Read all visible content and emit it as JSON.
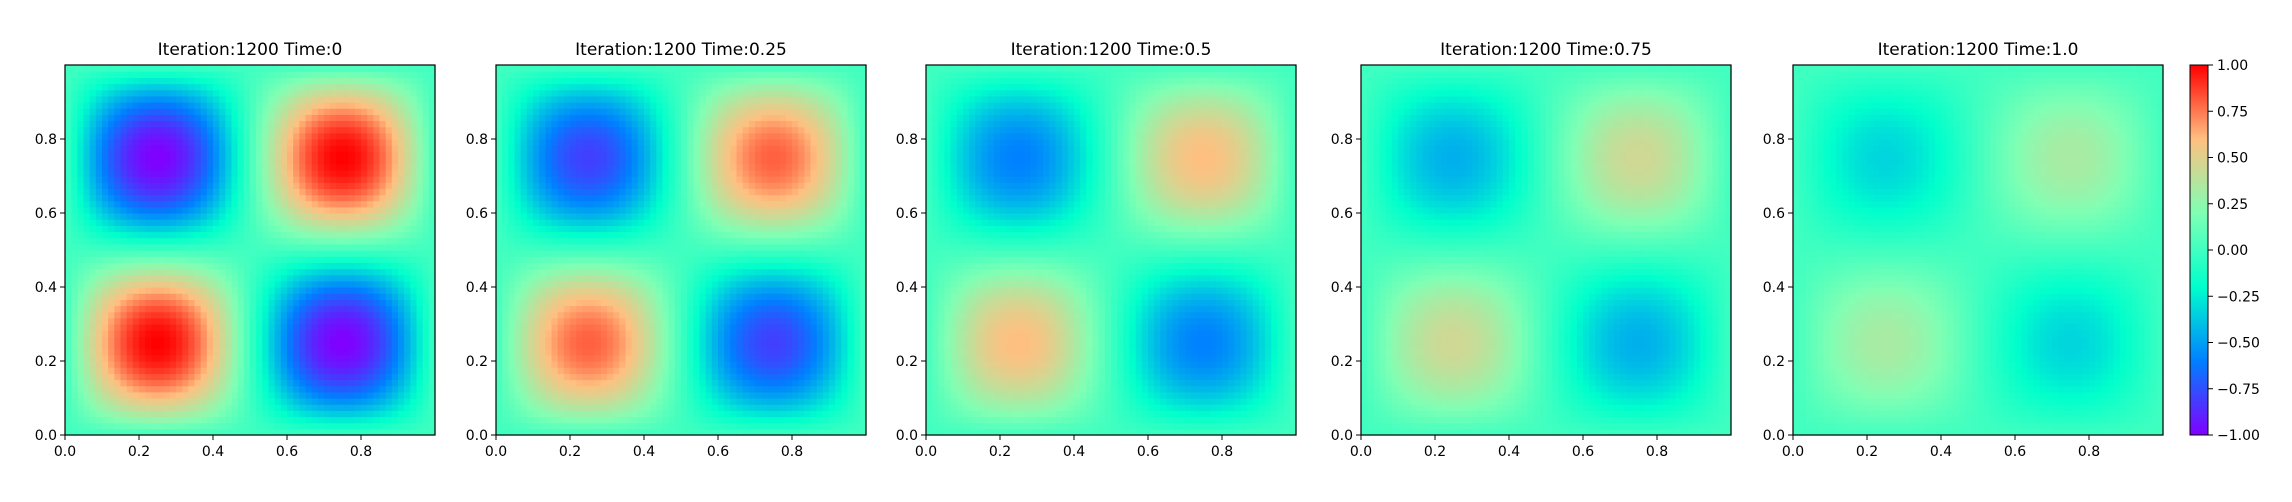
{
  "chart_data": {
    "type": "heatmap",
    "field": "sin(2πx)·sin(2πy) with amplitude decaying over time",
    "colormap": "rainbow",
    "colors": [
      "#8000ff",
      "#0080ff",
      "#00ffcc",
      "#80ffb4",
      "#ffc080",
      "#ff0000"
    ],
    "clim": [
      -1.0,
      1.0
    ],
    "xlim": [
      0.0,
      1.0
    ],
    "ylim": [
      0.0,
      1.0
    ],
    "x_ticks": [
      "0.0",
      "0.2",
      "0.4",
      "0.6",
      "0.8"
    ],
    "y_ticks": [
      "0.0",
      "0.2",
      "0.4",
      "0.6",
      "0.8"
    ],
    "colorbar_ticks": [
      "1.00",
      "0.75",
      "0.50",
      "0.25",
      "0.00",
      "−0.25",
      "−0.50",
      "−0.75",
      "−1.00"
    ],
    "panels": [
      {
        "title": "Iteration:1200  Time:0",
        "time": 0,
        "amplitude": 1.0
      },
      {
        "title": "Iteration:1200  Time:0.25",
        "time": 0.25,
        "amplitude": 0.8
      },
      {
        "title": "Iteration:1200  Time:0.5",
        "time": 0.5,
        "amplitude": 0.6
      },
      {
        "title": "Iteration:1200  Time:0.75",
        "time": 0.75,
        "amplitude": 0.45
      },
      {
        "title": "Iteration:1200  Time:1.0",
        "time": 1.0,
        "amplitude": 0.33
      }
    ]
  }
}
